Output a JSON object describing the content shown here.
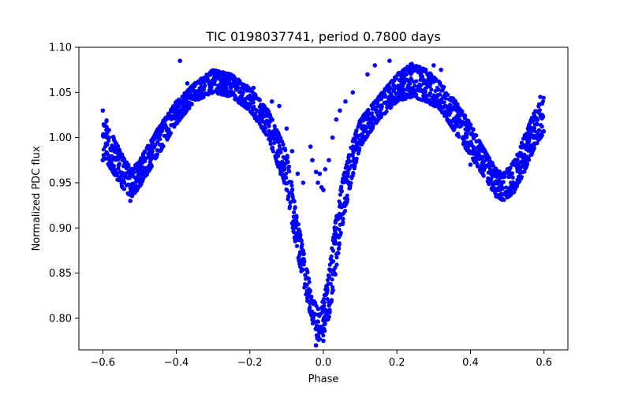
{
  "chart_data": {
    "type": "scatter",
    "title": "TIC 0198037741, period 0.7800 days",
    "xlabel": "Phase",
    "ylabel": "Normalized PDC flux",
    "xlim": [
      -0.665,
      0.665
    ],
    "ylim": [
      0.765,
      1.1
    ],
    "grid": false,
    "legend": "none",
    "xticks": [
      -0.6,
      -0.4,
      -0.2,
      0.0,
      0.2,
      0.4,
      0.6
    ],
    "xtick_labels": [
      "−0.6",
      "−0.4",
      "−0.2",
      "0.0",
      "0.2",
      "0.4",
      "0.6"
    ],
    "yticks": [
      0.8,
      0.85,
      0.9,
      0.95,
      1.0,
      1.05,
      1.1
    ],
    "ytick_labels": [
      "0.80",
      "0.85",
      "0.90",
      "0.95",
      "1.00",
      "1.05",
      "1.10"
    ],
    "series": [
      {
        "name": "flux",
        "color": "#0000ff",
        "marker": "circle",
        "envelope": {
          "phase": [
            -0.6,
            -0.57,
            -0.54,
            -0.52,
            -0.5,
            -0.45,
            -0.4,
            -0.35,
            -0.3,
            -0.25,
            -0.2,
            -0.15,
            -0.1,
            -0.075,
            -0.05,
            -0.03,
            -0.015,
            0.0,
            0.015,
            0.03,
            0.05,
            0.075,
            0.1,
            0.15,
            0.2,
            0.24,
            0.28,
            0.32,
            0.36,
            0.4,
            0.44,
            0.47,
            0.49,
            0.52,
            0.55,
            0.575,
            0.6
          ],
          "flux_upper": [
            1.03,
            1.0,
            0.975,
            0.965,
            0.975,
            1.01,
            1.04,
            1.06,
            1.075,
            1.07,
            1.055,
            1.03,
            0.985,
            0.92,
            0.865,
            0.825,
            0.81,
            0.82,
            0.85,
            0.9,
            0.95,
            0.99,
            1.02,
            1.045,
            1.07,
            1.082,
            1.075,
            1.06,
            1.04,
            1.015,
            0.985,
            0.965,
            0.96,
            0.975,
            1.005,
            1.03,
            1.045
          ],
          "flux_lower": [
            0.98,
            0.96,
            0.94,
            0.935,
            0.945,
            0.98,
            1.015,
            1.04,
            1.05,
            1.045,
            1.03,
            1.0,
            0.94,
            0.88,
            0.83,
            0.795,
            0.775,
            0.78,
            0.8,
            0.84,
            0.9,
            0.95,
            0.99,
            1.02,
            1.04,
            1.045,
            1.04,
            1.03,
            1.005,
            0.98,
            0.955,
            0.935,
            0.93,
            0.94,
            0.965,
            0.99,
            1.005
          ]
        },
        "points": [
          {
            "x": -0.39,
            "y": 1.085
          },
          {
            "x": -0.37,
            "y": 1.06
          },
          {
            "x": -0.24,
            "y": 1.06
          },
          {
            "x": -0.19,
            "y": 1.055
          },
          {
            "x": -0.14,
            "y": 1.04
          },
          {
            "x": -0.12,
            "y": 1.035
          },
          {
            "x": -0.1,
            "y": 1.01
          },
          {
            "x": -0.085,
            "y": 0.985
          },
          {
            "x": -0.07,
            "y": 0.96
          },
          {
            "x": -0.055,
            "y": 0.95
          },
          {
            "x": -0.035,
            "y": 0.99
          },
          {
            "x": -0.03,
            "y": 0.975
          },
          {
            "x": -0.02,
            "y": 0.962
          },
          {
            "x": -0.015,
            "y": 0.95
          },
          {
            "x": -0.01,
            "y": 0.96
          },
          {
            "x": -0.005,
            "y": 0.945
          },
          {
            "x": 0.0,
            "y": 0.942
          },
          {
            "x": 0.005,
            "y": 0.965
          },
          {
            "x": 0.015,
            "y": 0.975
          },
          {
            "x": 0.025,
            "y": 1.0
          },
          {
            "x": 0.035,
            "y": 1.02
          },
          {
            "x": 0.045,
            "y": 1.03
          },
          {
            "x": 0.06,
            "y": 1.04
          },
          {
            "x": 0.08,
            "y": 1.05
          },
          {
            "x": 0.12,
            "y": 1.07
          },
          {
            "x": 0.14,
            "y": 1.08
          },
          {
            "x": 0.18,
            "y": 1.085
          },
          {
            "x": 0.3,
            "y": 1.08
          },
          {
            "x": 0.32,
            "y": 1.075
          },
          {
            "x": 0.4,
            "y": 0.97
          },
          {
            "x": 0.47,
            "y": 0.935
          },
          {
            "x": 0.57,
            "y": 1.01
          },
          {
            "x": 0.59,
            "y": 1.045
          },
          {
            "x": -0.6,
            "y": 1.03
          },
          {
            "x": -0.6,
            "y": 0.975
          },
          {
            "x": -0.525,
            "y": 0.93
          },
          {
            "x": -0.02,
            "y": 0.77
          },
          {
            "x": 0.0,
            "y": 0.775
          }
        ]
      }
    ]
  }
}
